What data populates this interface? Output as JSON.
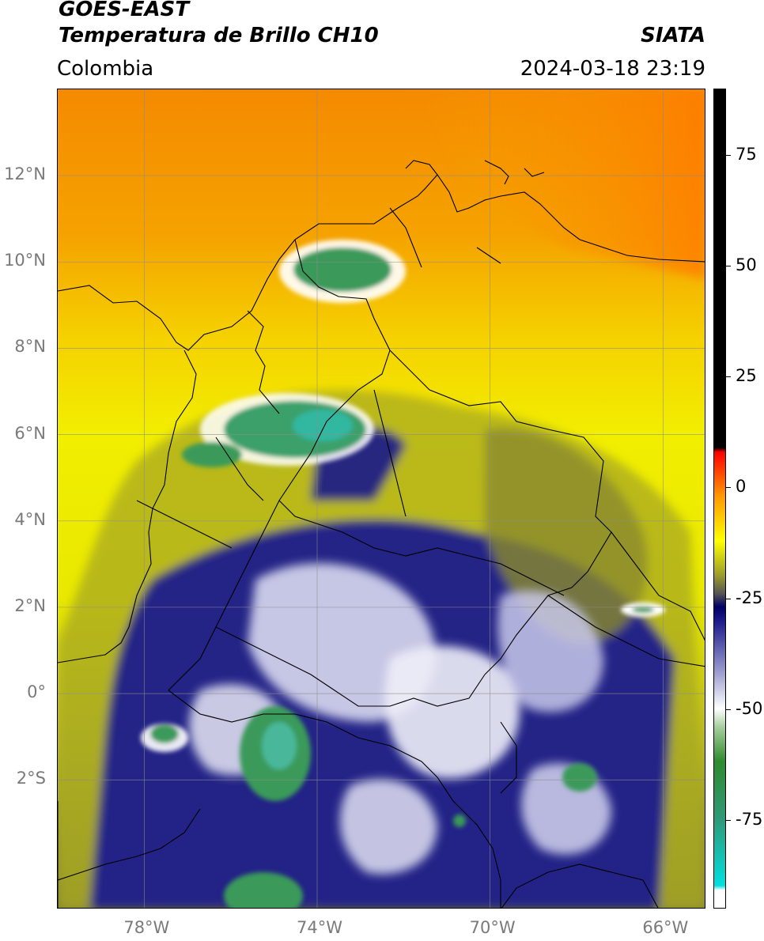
{
  "header": {
    "satellite": "GOES-EAST",
    "product": "Temperatura de Brillo CH10",
    "region": "Colombia",
    "org": "SIATA",
    "timestamp": "2024-03-18 23:19"
  },
  "map": {
    "lon_range": [
      -80,
      -65
    ],
    "lat_range": [
      -5,
      14
    ],
    "lat_ticks": [
      {
        "value": 12,
        "label": "12°N"
      },
      {
        "value": 10,
        "label": "10°N"
      },
      {
        "value": 8,
        "label": "8°N"
      },
      {
        "value": 6,
        "label": "6°N"
      },
      {
        "value": 4,
        "label": "4°N"
      },
      {
        "value": 2,
        "label": "2°N"
      },
      {
        "value": 0,
        "label": "0°"
      },
      {
        "value": -2,
        "label": "2°S"
      }
    ],
    "lon_ticks": [
      {
        "value": -78,
        "label": "78°W"
      },
      {
        "value": -74,
        "label": "74°W"
      },
      {
        "value": -70,
        "label": "70°W"
      },
      {
        "value": -66,
        "label": "66°W"
      }
    ],
    "grid": true
  },
  "colorbar": {
    "range": [
      -95,
      90
    ],
    "ticks": [
      {
        "value": 75,
        "label": "75"
      },
      {
        "value": 50,
        "label": "50"
      },
      {
        "value": 25,
        "label": "25"
      },
      {
        "value": 0,
        "label": "0"
      },
      {
        "value": -25,
        "label": "-25"
      },
      {
        "value": -50,
        "label": "-50"
      },
      {
        "value": -75,
        "label": "-75"
      }
    ],
    "stops": [
      {
        "value": -95,
        "color": "#ffffff"
      },
      {
        "value": -91,
        "color": "#ffffff"
      },
      {
        "value": -90,
        "color": "#00e0e0"
      },
      {
        "value": -75,
        "color": "#2e9a7a"
      },
      {
        "value": -62,
        "color": "#2e8b2e"
      },
      {
        "value": -54,
        "color": "#a8d0a0"
      },
      {
        "value": -50,
        "color": "#ffffff"
      },
      {
        "value": -42,
        "color": "#a0a0d0"
      },
      {
        "value": -30,
        "color": "#1a1a8c"
      },
      {
        "value": -27,
        "color": "#000066"
      },
      {
        "value": -24,
        "color": "#555555"
      },
      {
        "value": -20,
        "color": "#9a9a2a"
      },
      {
        "value": -12,
        "color": "#ffff00"
      },
      {
        "value": -2,
        "color": "#ff9900"
      },
      {
        "value": 8,
        "color": "#ff0000"
      },
      {
        "value": 9,
        "color": "#000000"
      },
      {
        "value": 90,
        "color": "#000000"
      }
    ]
  }
}
